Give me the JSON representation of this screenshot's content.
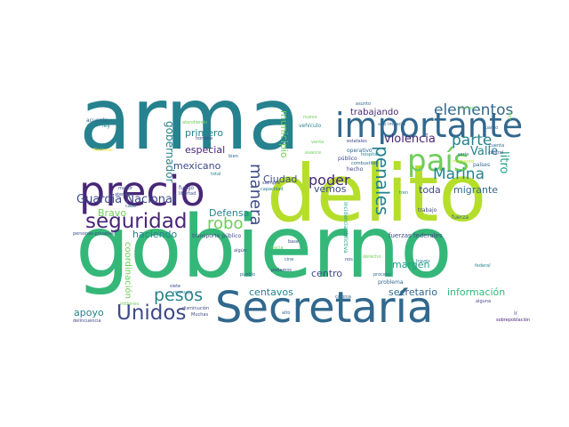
{
  "palette": {
    "dark_purple": "#482677",
    "indigo": "#3e4a89",
    "blue": "#31688e",
    "teal": "#26828e",
    "sea": "#1f9e89",
    "green": "#35b779",
    "lime": "#6ece58",
    "yellow_green": "#b5de2b",
    "yellow": "#fde725"
  },
  "words": {
    "arma": "arma",
    "gobierno": "gobierno",
    "delito": "delito",
    "secretaria_big": "Secretaría",
    "precio": "precio",
    "importante": "importante",
    "pais": "país",
    "seguridad": "seguridad",
    "unidos": "Unidos",
    "elementos": "elementos",
    "parte": "parte",
    "penales": "penales",
    "marina": "Marina",
    "manera": "manera",
    "robo": "robo",
    "pesos": "pesos",
    "poder": "poder",
    "guardia_nacional": "Guardia Nacional",
    "violencia": "violencia",
    "valle": "Valle",
    "litro": "litro",
    "gobernador": "gobernador",
    "especial": "especial",
    "primero": "primero",
    "mexicano": "mexicano",
    "ciudad": "Ciudad",
    "municipio": "municipio",
    "trabajando": "trabajando",
    "vemos": "vemos",
    "toda": "toda",
    "migrante": "migrante",
    "bravo": "Bravo",
    "defensa": "Defensa",
    "haciendo": "haciendo",
    "margen": "margen",
    "centro": "centro",
    "centavos": "centavos",
    "secretario": "secretario",
    "informacion": "información",
    "apoyo": "apoyo",
    "coordinacion": "coordinación",
    "acuerdo": "acuerdo",
    "ley": "ley",
    "nacional": "Nacional",
    "asunto": "asunto",
    "alto_impacto": "alto impacto",
    "numero": "número",
    "hoy": "hoy",
    "operativo": "operativo",
    "hospital": "hospital",
    "publico": "público",
    "combustible": "combustible",
    "hecho": "hecho",
    "estatales": "estatales",
    "cuanto": "cuanto",
    "cuenta": "cuenta",
    "control": "control",
    "paises": "países",
    "seria": "sería",
    "momento": "momento",
    "fuerzas_federales": "fuerzas federales",
    "fuerza": "fuerza",
    "federal": "federal",
    "traves": "través",
    "trabajo": "trabajo",
    "tren": "tren",
    "alguna": "alguna",
    "incidencia_delictiva": "incidencia delictiva",
    "proceso": "proceso",
    "problema": "problema",
    "ir": "ir",
    "sobrepoblacion": "sobrepoblación",
    "colonia": "colonia",
    "cine": "cine",
    "nos": "nos",
    "derecho": "derecho",
    "base": "base",
    "hacia": "hacia",
    "podemos": "podemos",
    "alto": "alto",
    "siempre": "siempre",
    "capacidad": "capacidad",
    "avance": "avance",
    "venta": "venta",
    "vehiculo": "vehículo",
    "nuevo": "nuevo",
    "hombre": "hombre",
    "atendiendo": "atendiendo",
    "bien": "bien",
    "total": "total",
    "mayor": "mayor",
    "atender": "atender",
    "fuego": "fuego",
    "libertad": "libertad",
    "cabo": "cabo",
    "personas_privadas": "personas privadas",
    "transporte_publico": "transporte público",
    "algun": "algún",
    "pueblo": "pueblo",
    "siete": "siete",
    "mensaje": "mensaje",
    "millones": "millones",
    "disminucion": "disminución",
    "muchas": "Muchas",
    "delincuencia": "delincuencia"
  }
}
